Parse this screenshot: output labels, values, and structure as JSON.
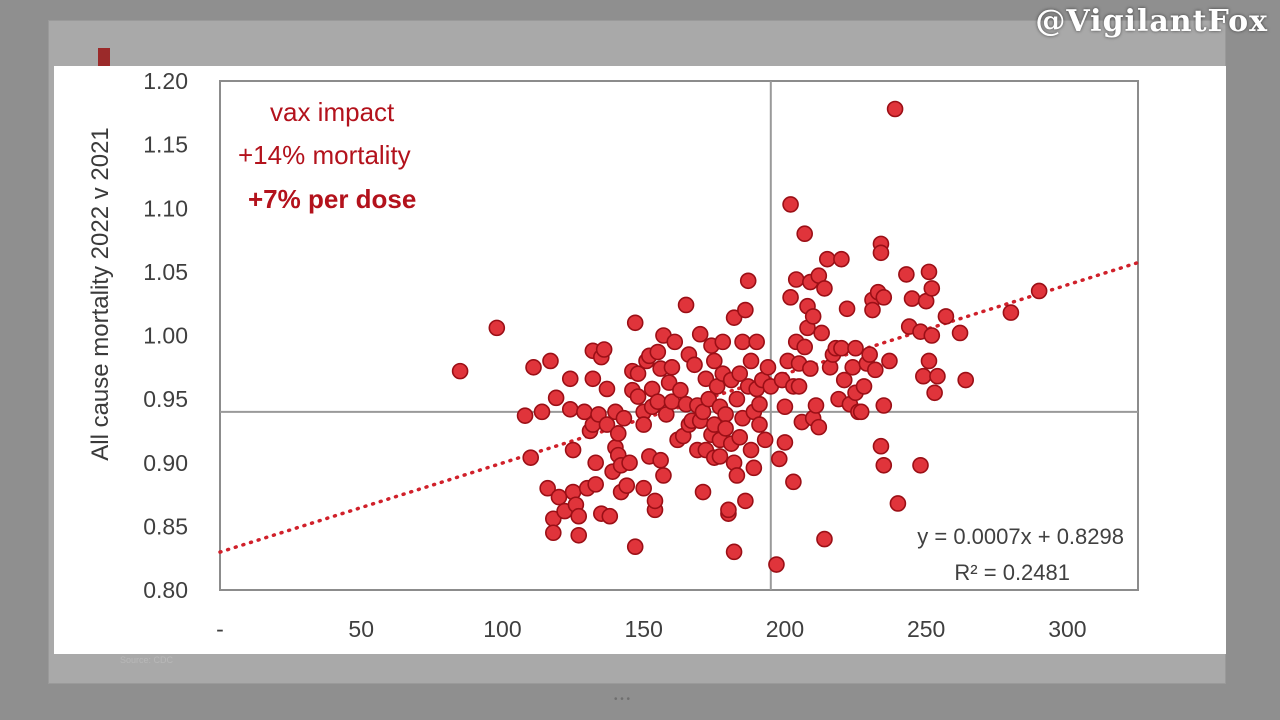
{
  "watermark": "@VigilantFox",
  "source_note": "Source: CDC",
  "chart_data": {
    "type": "scatter",
    "ylabel": "All cause mortality 2022 v 2021",
    "xlabel": "",
    "xlim": [
      0,
      325
    ],
    "ylim": [
      0.8,
      1.2
    ],
    "x_ticks": [
      "-",
      "50",
      "100",
      "150",
      "200",
      "250",
      "300"
    ],
    "y_ticks": [
      "0.80",
      "0.85",
      "0.90",
      "0.95",
      "1.00",
      "1.05",
      "1.10",
      "1.15",
      "1.20"
    ],
    "crosshair": {
      "x": 195,
      "y": 0.94
    },
    "annotations": [
      "vax impact",
      "+14% mortality",
      "+7% per dose"
    ],
    "trendline": {
      "equation": "y = 0.0007x + 0.8298",
      "r_squared": "R² = 0.2481",
      "slope": 0.0007,
      "intercept": 0.8298,
      "color": "#d0202a",
      "style": "dotted"
    },
    "marker_color": "#e0343b",
    "marker_edge": "#9b0f16",
    "points": [
      [
        85,
        0.972
      ],
      [
        98,
        1.006
      ],
      [
        108,
        0.937
      ],
      [
        110,
        0.904
      ],
      [
        111,
        0.975
      ],
      [
        114,
        0.94
      ],
      [
        116,
        0.88
      ],
      [
        117,
        0.98
      ],
      [
        118,
        0.856
      ],
      [
        118,
        0.845
      ],
      [
        119,
        0.951
      ],
      [
        120,
        0.873
      ],
      [
        122,
        0.862
      ],
      [
        124,
        0.966
      ],
      [
        124,
        0.942
      ],
      [
        125,
        0.91
      ],
      [
        125,
        0.877
      ],
      [
        126,
        0.867
      ],
      [
        127,
        0.858
      ],
      [
        127,
        0.843
      ],
      [
        129,
        0.94
      ],
      [
        130,
        0.88
      ],
      [
        131,
        0.925
      ],
      [
        132,
        0.93
      ],
      [
        132,
        0.966
      ],
      [
        132,
        0.988
      ],
      [
        133,
        0.9
      ],
      [
        133,
        0.883
      ],
      [
        134,
        0.938
      ],
      [
        135,
        0.86
      ],
      [
        135,
        0.983
      ],
      [
        136,
        0.989
      ],
      [
        137,
        0.958
      ],
      [
        137,
        0.93
      ],
      [
        138,
        0.858
      ],
      [
        139,
        0.893
      ],
      [
        140,
        0.912
      ],
      [
        140,
        0.94
      ],
      [
        141,
        0.923
      ],
      [
        141,
        0.906
      ],
      [
        142,
        0.877
      ],
      [
        142,
        0.898
      ],
      [
        143,
        0.935
      ],
      [
        144,
        0.882
      ],
      [
        145,
        0.9
      ],
      [
        146,
        0.972
      ],
      [
        146,
        0.957
      ],
      [
        147,
        1.01
      ],
      [
        147,
        0.834
      ],
      [
        148,
        0.97
      ],
      [
        148,
        0.952
      ],
      [
        150,
        0.94
      ],
      [
        150,
        0.88
      ],
      [
        150,
        0.93
      ],
      [
        151,
        0.98
      ],
      [
        152,
        0.905
      ],
      [
        152,
        0.984
      ],
      [
        153,
        0.958
      ],
      [
        153,
        0.944
      ],
      [
        154,
        0.863
      ],
      [
        154,
        0.87
      ],
      [
        155,
        0.987
      ],
      [
        155,
        0.948
      ],
      [
        156,
        0.902
      ],
      [
        156,
        0.974
      ],
      [
        157,
        1.0
      ],
      [
        157,
        0.89
      ],
      [
        158,
        0.938
      ],
      [
        159,
        0.963
      ],
      [
        160,
        0.948
      ],
      [
        160,
        0.975
      ],
      [
        161,
        0.995
      ],
      [
        162,
        0.918
      ],
      [
        163,
        0.957
      ],
      [
        164,
        0.921
      ],
      [
        165,
        0.946
      ],
      [
        165,
        1.024
      ],
      [
        166,
        0.985
      ],
      [
        166,
        0.93
      ],
      [
        167,
        0.933
      ],
      [
        168,
        0.977
      ],
      [
        169,
        0.945
      ],
      [
        169,
        0.91
      ],
      [
        170,
        0.933
      ],
      [
        170,
        1.001
      ],
      [
        171,
        0.877
      ],
      [
        171,
        0.94
      ],
      [
        172,
        0.966
      ],
      [
        172,
        0.91
      ],
      [
        173,
        0.95
      ],
      [
        174,
        0.992
      ],
      [
        174,
        0.922
      ],
      [
        175,
        0.98
      ],
      [
        175,
        0.93
      ],
      [
        175,
        0.904
      ],
      [
        176,
        0.96
      ],
      [
        177,
        0.944
      ],
      [
        177,
        0.918
      ],
      [
        177,
        0.905
      ],
      [
        178,
        0.97
      ],
      [
        178,
        0.995
      ],
      [
        179,
        0.938
      ],
      [
        179,
        0.927
      ],
      [
        180,
        0.86
      ],
      [
        180,
        0.863
      ],
      [
        181,
        0.915
      ],
      [
        181,
        0.965
      ],
      [
        182,
        0.83
      ],
      [
        182,
        1.014
      ],
      [
        182,
        0.9
      ],
      [
        183,
        0.89
      ],
      [
        183,
        0.95
      ],
      [
        184,
        0.92
      ],
      [
        184,
        0.97
      ],
      [
        185,
        0.935
      ],
      [
        185,
        0.995
      ],
      [
        186,
        0.87
      ],
      [
        186,
        1.02
      ],
      [
        187,
        1.043
      ],
      [
        187,
        0.96
      ],
      [
        188,
        0.91
      ],
      [
        188,
        0.98
      ],
      [
        189,
        0.94
      ],
      [
        189,
        0.896
      ],
      [
        190,
        0.995
      ],
      [
        190,
        0.958
      ],
      [
        191,
        0.946
      ],
      [
        191,
        0.93
      ],
      [
        192,
        0.965
      ],
      [
        193,
        0.918
      ],
      [
        194,
        0.975
      ],
      [
        195,
        0.96
      ],
      [
        197,
        0.82
      ],
      [
        198,
        0.903
      ],
      [
        199,
        0.965
      ],
      [
        200,
        0.944
      ],
      [
        200,
        0.916
      ],
      [
        201,
        0.98
      ],
      [
        202,
        1.03
      ],
      [
        202,
        1.103
      ],
      [
        203,
        0.96
      ],
      [
        203,
        0.885
      ],
      [
        204,
        1.044
      ],
      [
        204,
        0.995
      ],
      [
        205,
        0.978
      ],
      [
        205,
        0.96
      ],
      [
        206,
        0.932
      ],
      [
        207,
        1.08
      ],
      [
        207,
        0.991
      ],
      [
        208,
        1.006
      ],
      [
        208,
        1.023
      ],
      [
        209,
        0.974
      ],
      [
        209,
        1.042
      ],
      [
        210,
        1.015
      ],
      [
        210,
        0.935
      ],
      [
        211,
        0.945
      ],
      [
        212,
        1.047
      ],
      [
        212,
        0.928
      ],
      [
        213,
        1.002
      ],
      [
        214,
        1.037
      ],
      [
        214,
        0.84
      ],
      [
        215,
        1.06
      ],
      [
        216,
        0.975
      ],
      [
        217,
        0.985
      ],
      [
        218,
        0.99
      ],
      [
        219,
        0.95
      ],
      [
        220,
        1.06
      ],
      [
        220,
        0.99
      ],
      [
        221,
        0.965
      ],
      [
        222,
        1.021
      ],
      [
        223,
        0.946
      ],
      [
        224,
        0.975
      ],
      [
        225,
        0.955
      ],
      [
        225,
        0.99
      ],
      [
        226,
        0.94
      ],
      [
        227,
        0.94
      ],
      [
        228,
        0.96
      ],
      [
        229,
        0.978
      ],
      [
        230,
        0.985
      ],
      [
        231,
        1.028
      ],
      [
        231,
        1.02
      ],
      [
        232,
        0.973
      ],
      [
        233,
        1.034
      ],
      [
        234,
        0.913
      ],
      [
        234,
        1.072
      ],
      [
        234,
        1.065
      ],
      [
        235,
        0.898
      ],
      [
        235,
        1.03
      ],
      [
        235,
        0.945
      ],
      [
        237,
        0.98
      ],
      [
        239,
        1.178
      ],
      [
        240,
        0.868
      ],
      [
        243,
        1.048
      ],
      [
        244,
        1.007
      ],
      [
        245,
        1.029
      ],
      [
        248,
        0.898
      ],
      [
        248,
        1.003
      ],
      [
        249,
        0.968
      ],
      [
        250,
        1.027
      ],
      [
        251,
        1.05
      ],
      [
        251,
        0.98
      ],
      [
        252,
        1.037
      ],
      [
        252,
        1.0
      ],
      [
        253,
        0.955
      ],
      [
        254,
        0.968
      ],
      [
        257,
        1.015
      ],
      [
        262,
        1.002
      ],
      [
        264,
        0.965
      ],
      [
        280,
        1.018
      ],
      [
        290,
        1.035
      ]
    ]
  }
}
